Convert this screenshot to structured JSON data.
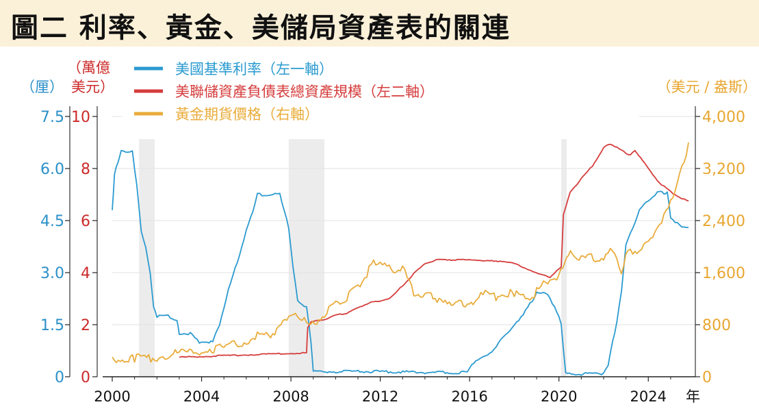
{
  "title": "圖二 利率、黃金、美儲局資產表的關連",
  "chart_data": {
    "type": "line",
    "x_unit_label": "年",
    "x_ticks": [
      2000,
      2004,
      2008,
      2012,
      2016,
      2020,
      2024
    ],
    "xlim": [
      2000,
      2025.8
    ],
    "recessions": [
      [
        2001.2,
        2001.9
      ],
      [
        2007.9,
        2009.5
      ],
      [
        2020.1,
        2020.35
      ]
    ],
    "axes": {
      "left1": {
        "unit": "（厘）",
        "ticks": [
          "0",
          "1.5",
          "3.0",
          "4.5",
          "6.0",
          "7.5"
        ],
        "ylim": [
          0,
          7.5
        ],
        "color": "#2a8fc8"
      },
      "left2": {
        "unit_line1": "（萬億",
        "unit_line2": "美元）",
        "ticks": [
          "0",
          "2",
          "4",
          "6",
          "8",
          "10"
        ],
        "ylim": [
          0,
          10
        ],
        "color": "#cc2a2a"
      },
      "right": {
        "unit": "（美元 / 盎斯）",
        "ticks": [
          "0",
          "800",
          "1,600",
          "2,400",
          "3,200",
          "4,000"
        ],
        "ylim": [
          0,
          4000
        ],
        "color": "#e8a630"
      }
    },
    "series": [
      {
        "name": "美國基準利率（左一軸）",
        "axis": "left1",
        "color": "#2a9ad0",
        "x": [
          2000.0,
          2000.1,
          2000.25,
          2000.4,
          2000.6,
          2000.9,
          2001.0,
          2001.1,
          2001.3,
          2001.5,
          2001.7,
          2001.85,
          2002.0,
          2002.5,
          2002.9,
          2003.0,
          2003.5,
          2003.9,
          2004.5,
          2004.8,
          2005.2,
          2005.6,
          2006.0,
          2006.3,
          2006.5,
          2007.0,
          2007.5,
          2007.7,
          2007.9,
          2008.1,
          2008.3,
          2008.7,
          2008.9,
          2009.0,
          2010.0,
          2012.0,
          2014.0,
          2015.9,
          2016.1,
          2016.9,
          2017.2,
          2017.5,
          2017.9,
          2018.2,
          2018.5,
          2018.8,
          2019.0,
          2019.5,
          2019.8,
          2020.1,
          2020.3,
          2021.0,
          2022.0,
          2022.2,
          2022.4,
          2022.6,
          2022.8,
          2023.0,
          2023.3,
          2023.6,
          2024.0,
          2024.4,
          2024.7,
          2024.85,
          2025.0,
          2025.5,
          2025.8
        ],
        "y": [
          4.8,
          5.8,
          6.2,
          6.5,
          6.5,
          6.5,
          6.0,
          5.5,
          4.2,
          3.7,
          3.0,
          2.0,
          1.75,
          1.75,
          1.6,
          1.25,
          1.25,
          1.0,
          1.0,
          1.5,
          2.5,
          3.3,
          4.2,
          4.8,
          5.25,
          5.25,
          5.25,
          4.8,
          4.3,
          3.1,
          2.2,
          2.0,
          1.0,
          0.15,
          0.15,
          0.15,
          0.12,
          0.12,
          0.38,
          0.65,
          0.9,
          1.15,
          1.4,
          1.65,
          1.9,
          2.2,
          2.4,
          2.4,
          2.0,
          1.55,
          0.08,
          0.08,
          0.08,
          0.33,
          1.0,
          1.6,
          2.5,
          3.8,
          4.3,
          4.8,
          5.1,
          5.3,
          5.3,
          5.3,
          4.6,
          4.3,
          4.3
        ]
      },
      {
        "name": "美聯儲資產負債表總資產規模（左二軸）",
        "axis": "left2",
        "color": "#d53c3c",
        "x": [
          2003.0,
          2004.0,
          2005.0,
          2006.0,
          2007.0,
          2008.0,
          2008.7,
          2008.75,
          2008.9,
          2009.5,
          2010.0,
          2010.5,
          2011.0,
          2011.5,
          2012.0,
          2012.5,
          2013.0,
          2013.5,
          2014.0,
          2014.5,
          2015.0,
          2016.0,
          2017.0,
          2018.0,
          2019.0,
          2019.6,
          2019.9,
          2020.1,
          2020.2,
          2020.5,
          2021.0,
          2021.5,
          2022.0,
          2022.3,
          2022.6,
          2023.0,
          2023.2,
          2023.4,
          2024.0,
          2024.5,
          2025.0,
          2025.5,
          2025.8
        ],
        "y": [
          0.75,
          0.78,
          0.81,
          0.84,
          0.87,
          0.9,
          0.92,
          1.9,
          2.1,
          2.2,
          2.35,
          2.45,
          2.65,
          2.85,
          2.9,
          3.05,
          3.5,
          3.95,
          4.35,
          4.48,
          4.5,
          4.48,
          4.47,
          4.35,
          4.0,
          3.8,
          4.1,
          4.2,
          6.2,
          7.1,
          7.6,
          8.1,
          8.8,
          8.95,
          8.8,
          8.6,
          8.5,
          8.7,
          8.0,
          7.45,
          7.1,
          6.85,
          6.75
        ]
      },
      {
        "name": "黃金期貨價格（右軸）",
        "axis": "right",
        "color": "#e9ac3b",
        "x": [
          2000.0,
          2001.0,
          2002.0,
          2003.0,
          2004.0,
          2005.0,
          2006.0,
          2006.5,
          2007.0,
          2008.0,
          2008.3,
          2008.8,
          2009.5,
          2010.0,
          2010.5,
          2011.0,
          2011.5,
          2011.7,
          2012.0,
          2012.5,
          2013.0,
          2013.5,
          2014.0,
          2015.0,
          2015.9,
          2016.5,
          2017.0,
          2018.0,
          2018.5,
          2019.0,
          2019.5,
          2020.0,
          2020.6,
          2021.0,
          2022.0,
          2022.3,
          2022.8,
          2023.0,
          2023.5,
          2024.0,
          2024.5,
          2025.0,
          2025.3,
          2025.6,
          2025.8
        ],
        "y": [
          290,
          270,
          310,
          360,
          410,
          450,
          560,
          640,
          650,
          880,
          950,
          780,
          950,
          1100,
          1230,
          1400,
          1650,
          1800,
          1700,
          1650,
          1650,
          1300,
          1250,
          1180,
          1060,
          1300,
          1230,
          1300,
          1200,
          1300,
          1480,
          1550,
          1950,
          1800,
          1850,
          1950,
          1650,
          1880,
          1950,
          2050,
          2350,
          2650,
          3000,
          3300,
          3600
        ]
      }
    ]
  }
}
